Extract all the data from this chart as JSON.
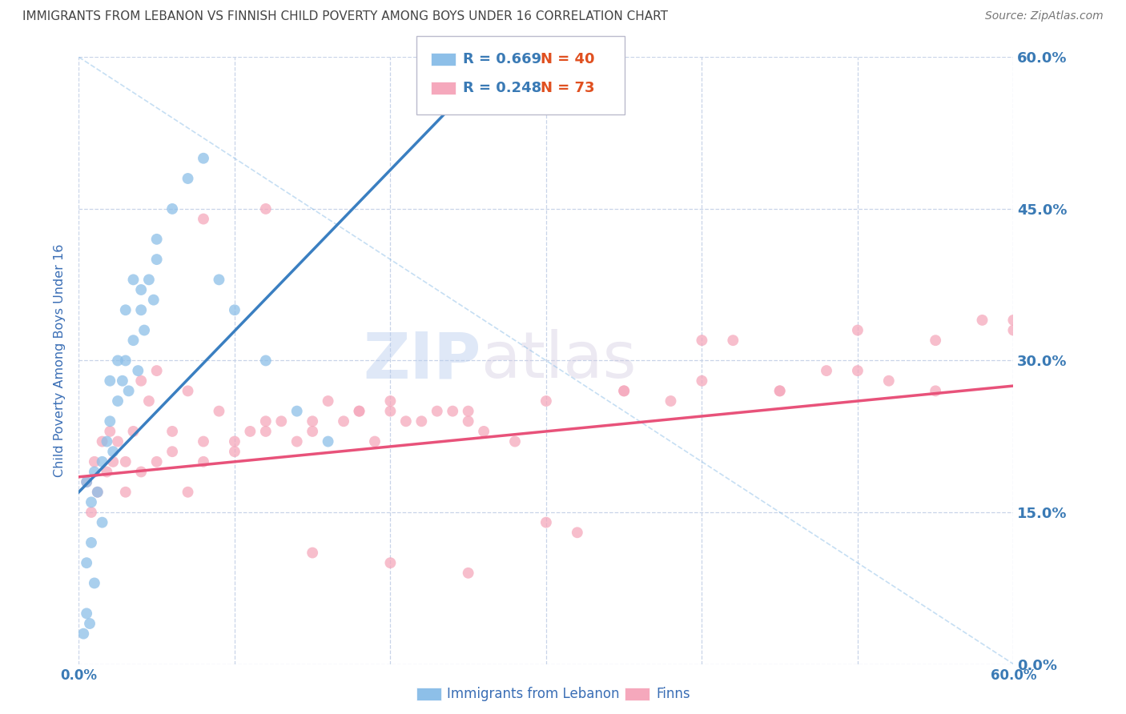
{
  "title": "IMMIGRANTS FROM LEBANON VS FINNISH CHILD POVERTY AMONG BOYS UNDER 16 CORRELATION CHART",
  "source": "Source: ZipAtlas.com",
  "ylabel": "Child Poverty Among Boys Under 16",
  "xlim": [
    0.0,
    0.6
  ],
  "ylim": [
    0.0,
    0.6
  ],
  "xticks": [
    0.0,
    0.1,
    0.2,
    0.3,
    0.4,
    0.5,
    0.6
  ],
  "yticks": [
    0.0,
    0.15,
    0.3,
    0.45,
    0.6
  ],
  "xtick_labels_edge": [
    "0.0%",
    "",
    "",
    "",
    "",
    "",
    "60.0%"
  ],
  "ytick_labels": [
    "0.0%",
    "15.0%",
    "30.0%",
    "45.0%",
    "60.0%"
  ],
  "blue_R": 0.669,
  "blue_N": 40,
  "pink_R": 0.248,
  "pink_N": 73,
  "blue_color": "#8dbfe8",
  "pink_color": "#f5a8bc",
  "blue_line_color": "#3a7fc1",
  "pink_line_color": "#e8527a",
  "legend_label_blue": "Immigrants from Lebanon",
  "legend_label_pink": "Finns",
  "watermark_zip": "ZIP",
  "watermark_atlas": "atlas",
  "background_color": "#ffffff",
  "grid_color": "#c8d4e8",
  "title_color": "#444444",
  "axis_label_color": "#3a6eb5",
  "tick_color": "#3a7ab5",
  "r_color": "#3a7ab5",
  "n_color": "#e05020",
  "blue_scatter_x": [
    0.005,
    0.008,
    0.01,
    0.012,
    0.015,
    0.018,
    0.02,
    0.022,
    0.025,
    0.028,
    0.03,
    0.032,
    0.035,
    0.038,
    0.04,
    0.042,
    0.045,
    0.048,
    0.05,
    0.005,
    0.008,
    0.01,
    0.015,
    0.02,
    0.025,
    0.03,
    0.035,
    0.04,
    0.05,
    0.06,
    0.07,
    0.08,
    0.09,
    0.1,
    0.12,
    0.14,
    0.16,
    0.005,
    0.007,
    0.003
  ],
  "blue_scatter_y": [
    0.18,
    0.16,
    0.19,
    0.17,
    0.2,
    0.22,
    0.24,
    0.21,
    0.26,
    0.28,
    0.3,
    0.27,
    0.32,
    0.29,
    0.35,
    0.33,
    0.38,
    0.36,
    0.4,
    0.1,
    0.12,
    0.08,
    0.14,
    0.28,
    0.3,
    0.35,
    0.38,
    0.37,
    0.42,
    0.45,
    0.48,
    0.5,
    0.38,
    0.35,
    0.3,
    0.25,
    0.22,
    0.05,
    0.04,
    0.03
  ],
  "pink_scatter_x": [
    0.005,
    0.008,
    0.01,
    0.012,
    0.015,
    0.018,
    0.02,
    0.022,
    0.025,
    0.03,
    0.035,
    0.04,
    0.045,
    0.05,
    0.06,
    0.07,
    0.08,
    0.09,
    0.1,
    0.11,
    0.12,
    0.13,
    0.14,
    0.15,
    0.16,
    0.17,
    0.18,
    0.19,
    0.2,
    0.21,
    0.22,
    0.23,
    0.24,
    0.25,
    0.26,
    0.28,
    0.3,
    0.32,
    0.35,
    0.38,
    0.4,
    0.42,
    0.45,
    0.48,
    0.5,
    0.52,
    0.55,
    0.58,
    0.6,
    0.03,
    0.04,
    0.05,
    0.06,
    0.07,
    0.08,
    0.1,
    0.12,
    0.15,
    0.18,
    0.2,
    0.25,
    0.3,
    0.35,
    0.4,
    0.45,
    0.5,
    0.55,
    0.6,
    0.08,
    0.12,
    0.15,
    0.2,
    0.25
  ],
  "pink_scatter_y": [
    0.18,
    0.15,
    0.2,
    0.17,
    0.22,
    0.19,
    0.23,
    0.2,
    0.22,
    0.2,
    0.23,
    0.28,
    0.26,
    0.29,
    0.23,
    0.27,
    0.22,
    0.25,
    0.21,
    0.23,
    0.24,
    0.24,
    0.22,
    0.23,
    0.26,
    0.24,
    0.25,
    0.22,
    0.25,
    0.24,
    0.24,
    0.25,
    0.25,
    0.24,
    0.23,
    0.22,
    0.14,
    0.13,
    0.27,
    0.26,
    0.32,
    0.32,
    0.27,
    0.29,
    0.33,
    0.28,
    0.32,
    0.34,
    0.34,
    0.17,
    0.19,
    0.2,
    0.21,
    0.17,
    0.2,
    0.22,
    0.23,
    0.24,
    0.25,
    0.26,
    0.25,
    0.26,
    0.27,
    0.28,
    0.27,
    0.29,
    0.27,
    0.33,
    0.44,
    0.45,
    0.11,
    0.1,
    0.09
  ],
  "blue_trend_x0": 0.0,
  "blue_trend_x1": 0.27,
  "blue_trend_y0": 0.17,
  "blue_trend_y1": 0.6,
  "pink_trend_x0": 0.0,
  "pink_trend_x1": 0.6,
  "pink_trend_y0": 0.185,
  "pink_trend_y1": 0.275
}
